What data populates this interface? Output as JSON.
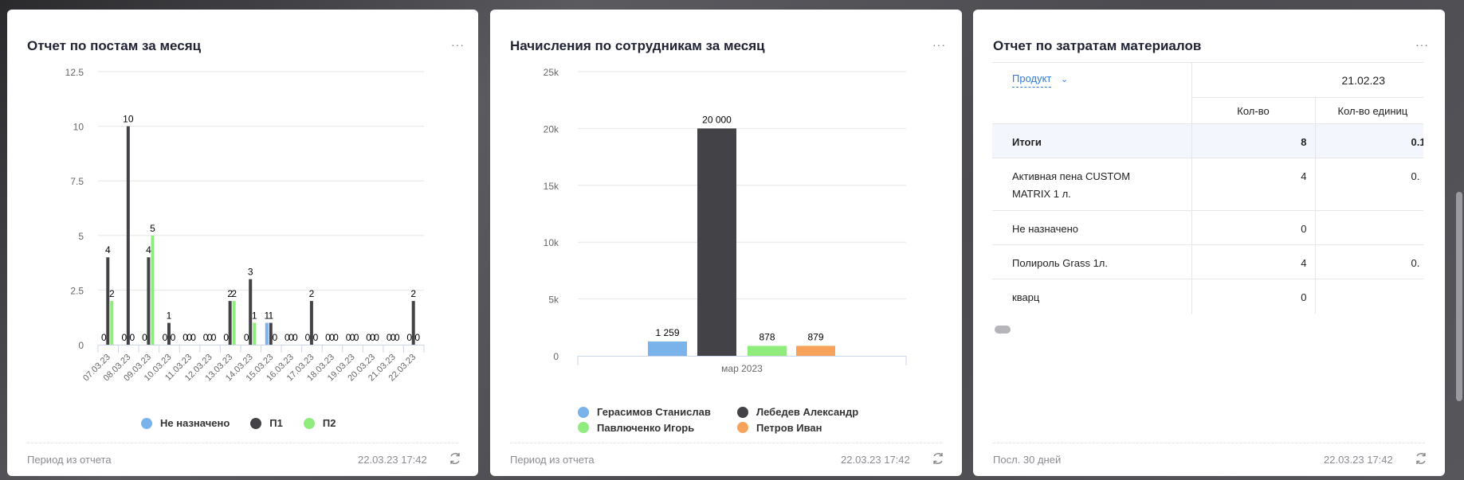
{
  "colors": {
    "unassigned": "#7ab3ea",
    "p1": "#434347",
    "p2": "#90ed7d",
    "orange": "#f7a35c",
    "link": "#2f7bd8"
  },
  "cards": [
    {
      "title": "Отчет по постам за месяц",
      "more": "···",
      "footer_period": "Период из отчета",
      "footer_time": "22.03.23 17:42"
    },
    {
      "title": "Начисления по сотрудникам за месяц",
      "more": "···",
      "footer_period": "Период из отчета",
      "footer_time": "22.03.23 17:42"
    },
    {
      "title": "Отчет по затратам материалов",
      "more": "···",
      "footer_period": "Посл. 30 дней",
      "footer_time": "22.03.23 17:42"
    }
  ],
  "chart_data": [
    {
      "type": "bar",
      "ylim": [
        0,
        12.5
      ],
      "yticks": [
        "0",
        "2.5",
        "5",
        "7.5",
        "10",
        "12.5"
      ],
      "grid": true,
      "legend_placement": "bottom",
      "categories": [
        "07.03.23",
        "08.03.23",
        "09.03.23",
        "10.03.23",
        "11.03.23",
        "12.03.23",
        "13.03.23",
        "14.03.23",
        "15.03.23",
        "16.03.23",
        "17.03.23",
        "18.03.23",
        "19.03.23",
        "20.03.23",
        "21.03.23",
        "22.03.23"
      ],
      "series": [
        {
          "name": "Не назначено",
          "color": "#7ab3ea",
          "values": [
            0,
            0,
            0,
            0,
            0,
            0,
            0,
            0,
            1,
            0,
            0,
            0,
            0,
            0,
            0,
            0
          ]
        },
        {
          "name": "П1",
          "color": "#434347",
          "values": [
            4,
            10,
            4,
            1,
            0,
            0,
            2,
            3,
            1,
            0,
            2,
            0,
            0,
            0,
            0,
            2
          ]
        },
        {
          "name": "П2",
          "color": "#90ed7d",
          "values": [
            2,
            0,
            5,
            0,
            0,
            0,
            2,
            1,
            0,
            0,
            0,
            0,
            0,
            0,
            0,
            0
          ]
        }
      ]
    },
    {
      "type": "bar",
      "ylim": [
        0,
        25000
      ],
      "yticks": [
        "0",
        "5k",
        "10k",
        "15k",
        "20k",
        "25k"
      ],
      "grid": true,
      "legend_placement": "bottom",
      "categories": [
        "мар 2023"
      ],
      "series": [
        {
          "name": "Герасимов Станислав",
          "color": "#7ab3ea",
          "values": [
            1259
          ],
          "label": "1 259"
        },
        {
          "name": "Лебедев Александр",
          "color": "#434347",
          "values": [
            20000
          ],
          "label": "20 000"
        },
        {
          "name": "Павлюченко Игорь",
          "color": "#90ed7d",
          "values": [
            878
          ],
          "label": "878"
        },
        {
          "name": "Петров Иван",
          "color": "#f7a35c",
          "values": [
            879
          ],
          "label": "879"
        }
      ]
    }
  ],
  "materials": {
    "group_by": "Продукт",
    "date": "21.02.23",
    "columns": [
      "Кол-во",
      "Кол-во единиц"
    ],
    "rows": [
      {
        "name": "Итоги",
        "qty": "8",
        "units": "0.1"
      },
      {
        "name": "Активная пена CUSTOM MATRIX 1 л.",
        "qty": "4",
        "units": "0."
      },
      {
        "name": "Не назначено",
        "qty": "0",
        "units": ""
      },
      {
        "name": "Полироль Grass 1л.",
        "qty": "4",
        "units": "0."
      },
      {
        "name": "кварц",
        "qty": "0",
        "units": ""
      }
    ]
  }
}
